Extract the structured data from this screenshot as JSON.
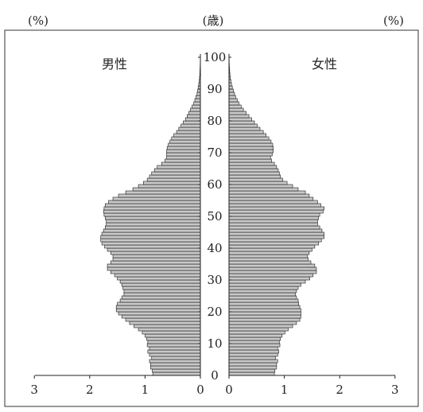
{
  "chart_data": {
    "type": "bar",
    "subtype": "population-pyramid",
    "title": "",
    "top_labels": {
      "left_unit": "(%)",
      "center_unit": "(歳)",
      "right_unit": "(%)"
    },
    "side_labels": {
      "male": "男性",
      "female": "女性"
    },
    "age_axis": {
      "range": [
        0,
        100
      ],
      "tick_labels": [
        "0",
        "10",
        "20",
        "30",
        "40",
        "50",
        "60",
        "70",
        "80",
        "90",
        "100"
      ]
    },
    "male_axis": {
      "range": [
        3,
        0
      ],
      "tick_labels": [
        "3",
        "2",
        "1",
        "0"
      ]
    },
    "female_axis": {
      "range": [
        0,
        3
      ],
      "tick_labels": [
        "0",
        "1",
        "2",
        "3"
      ]
    },
    "ages": [
      0,
      1,
      2,
      3,
      4,
      5,
      6,
      7,
      8,
      9,
      10,
      11,
      12,
      13,
      14,
      15,
      16,
      17,
      18,
      19,
      20,
      21,
      22,
      23,
      24,
      25,
      26,
      27,
      28,
      29,
      30,
      31,
      32,
      33,
      34,
      35,
      36,
      37,
      38,
      39,
      40,
      41,
      42,
      43,
      44,
      45,
      46,
      47,
      48,
      49,
      50,
      51,
      52,
      53,
      54,
      55,
      56,
      57,
      58,
      59,
      60,
      61,
      62,
      63,
      64,
      65,
      66,
      67,
      68,
      69,
      70,
      71,
      72,
      73,
      74,
      75,
      76,
      77,
      78,
      79,
      80,
      81,
      82,
      83,
      84,
      85,
      86,
      87,
      88,
      89,
      90,
      91,
      92,
      93,
      94,
      95,
      96,
      97,
      98,
      99,
      100
    ],
    "male": [
      0.86,
      0.87,
      0.9,
      0.9,
      0.92,
      0.88,
      0.92,
      0.95,
      0.92,
      0.96,
      0.95,
      0.97,
      1.0,
      1.05,
      1.12,
      1.2,
      1.28,
      1.35,
      1.42,
      1.48,
      1.52,
      1.52,
      1.5,
      1.45,
      1.42,
      1.38,
      1.38,
      1.4,
      1.42,
      1.45,
      1.5,
      1.55,
      1.62,
      1.68,
      1.68,
      1.62,
      1.58,
      1.58,
      1.62,
      1.68,
      1.73,
      1.78,
      1.8,
      1.8,
      1.78,
      1.75,
      1.72,
      1.7,
      1.7,
      1.72,
      1.74,
      1.75,
      1.74,
      1.72,
      1.66,
      1.58,
      1.48,
      1.35,
      1.22,
      1.12,
      1.03,
      0.96,
      0.92,
      0.88,
      0.83,
      0.78,
      0.7,
      0.64,
      0.61,
      0.61,
      0.61,
      0.6,
      0.58,
      0.55,
      0.52,
      0.48,
      0.43,
      0.39,
      0.35,
      0.31,
      0.27,
      0.24,
      0.21,
      0.18,
      0.15,
      0.12,
      0.1,
      0.08,
      0.06,
      0.05,
      0.04,
      0.03,
      0.02,
      0.015,
      0.01,
      0.008,
      0.006,
      0.004,
      0.003,
      0.002,
      0.001
    ],
    "female": [
      0.82,
      0.83,
      0.86,
      0.86,
      0.88,
      0.84,
      0.88,
      0.9,
      0.88,
      0.92,
      0.91,
      0.93,
      0.96,
      1.01,
      1.07,
      1.15,
      1.22,
      1.28,
      1.3,
      1.3,
      1.3,
      1.28,
      1.26,
      1.25,
      1.22,
      1.2,
      1.22,
      1.25,
      1.3,
      1.38,
      1.46,
      1.52,
      1.58,
      1.58,
      1.55,
      1.48,
      1.43,
      1.42,
      1.45,
      1.5,
      1.55,
      1.62,
      1.67,
      1.72,
      1.72,
      1.68,
      1.64,
      1.6,
      1.6,
      1.62,
      1.64,
      1.7,
      1.72,
      1.66,
      1.6,
      1.52,
      1.45,
      1.38,
      1.25,
      1.15,
      1.05,
      0.97,
      0.93,
      0.91,
      0.89,
      0.86,
      0.82,
      0.77,
      0.75,
      0.78,
      0.8,
      0.8,
      0.79,
      0.76,
      0.72,
      0.67,
      0.62,
      0.56,
      0.51,
      0.46,
      0.41,
      0.36,
      0.31,
      0.26,
      0.22,
      0.18,
      0.15,
      0.12,
      0.1,
      0.08,
      0.06,
      0.045,
      0.035,
      0.025,
      0.018,
      0.013,
      0.009,
      0.006,
      0.004,
      0.003,
      0.002
    ]
  }
}
